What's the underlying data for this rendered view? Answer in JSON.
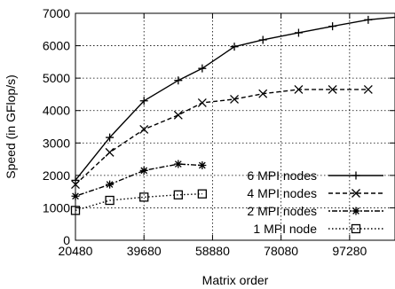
{
  "chart_data": {
    "type": "line",
    "title": "",
    "xlabel": "Matrix order",
    "ylabel": "Speed (in GFlop/s)",
    "xlim": [
      20480,
      110000
    ],
    "ylim": [
      0,
      7000
    ],
    "x_ticks": [
      20480,
      39680,
      58880,
      78080,
      97280
    ],
    "y_ticks": [
      0,
      1000,
      2000,
      3000,
      4000,
      5000,
      6000,
      7000
    ],
    "grid": true,
    "legend_position": "bottom-right",
    "series": [
      {
        "name": "6 MPI nodes",
        "style": "solid",
        "marker": "plus",
        "x": [
          20480,
          30080,
          39680,
          49280,
          56000,
          65000,
          73000,
          83000,
          92500,
          102500,
          110000
        ],
        "y": [
          1850,
          3170,
          4300,
          4930,
          5300,
          5970,
          6180,
          6400,
          6600,
          6800,
          6880
        ]
      },
      {
        "name": "4 MPI nodes",
        "style": "dashed",
        "marker": "x",
        "x": [
          20480,
          30080,
          39680,
          49280,
          56000,
          65000,
          73000,
          83000,
          92500,
          102500
        ],
        "y": [
          1720,
          2710,
          3420,
          3860,
          4240,
          4350,
          4520,
          4650,
          4650,
          4650
        ]
      },
      {
        "name": "2 MPI nodes",
        "style": "dotdash",
        "marker": "star",
        "x": [
          20480,
          30080,
          39680,
          49280,
          56000
        ],
        "y": [
          1360,
          1720,
          2150,
          2350,
          2310
        ]
      },
      {
        "name": "1 MPI node",
        "style": "dotted",
        "marker": "square",
        "x": [
          20480,
          30080,
          39680,
          49280,
          56000
        ],
        "y": [
          920,
          1230,
          1330,
          1400,
          1430
        ]
      }
    ]
  }
}
